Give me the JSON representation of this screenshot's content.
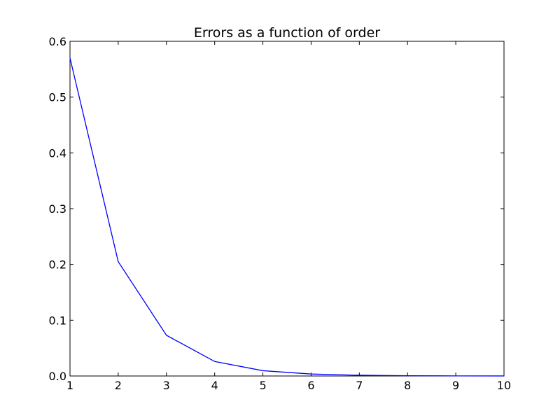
{
  "chart_data": {
    "type": "line",
    "title": "Errors as a function of order",
    "xlabel": "",
    "ylabel": "",
    "xlim": [
      1,
      10
    ],
    "ylim": [
      0,
      0.6
    ],
    "x_ticks": [
      "1",
      "2",
      "3",
      "4",
      "5",
      "6",
      "7",
      "8",
      "9",
      "10"
    ],
    "y_ticks": [
      "0.0",
      "0.1",
      "0.2",
      "0.3",
      "0.4",
      "0.5",
      "0.6"
    ],
    "grid": false,
    "legend": "none",
    "series": [
      {
        "color": "#0000ff",
        "x": [
          1,
          2,
          3,
          4,
          5,
          6,
          7,
          8,
          9,
          10
        ],
        "y": [
          0.57,
          0.205,
          0.073,
          0.026,
          0.0095,
          0.0035,
          0.0013,
          0.0005,
          0.0002,
          0.0001
        ]
      }
    ]
  }
}
